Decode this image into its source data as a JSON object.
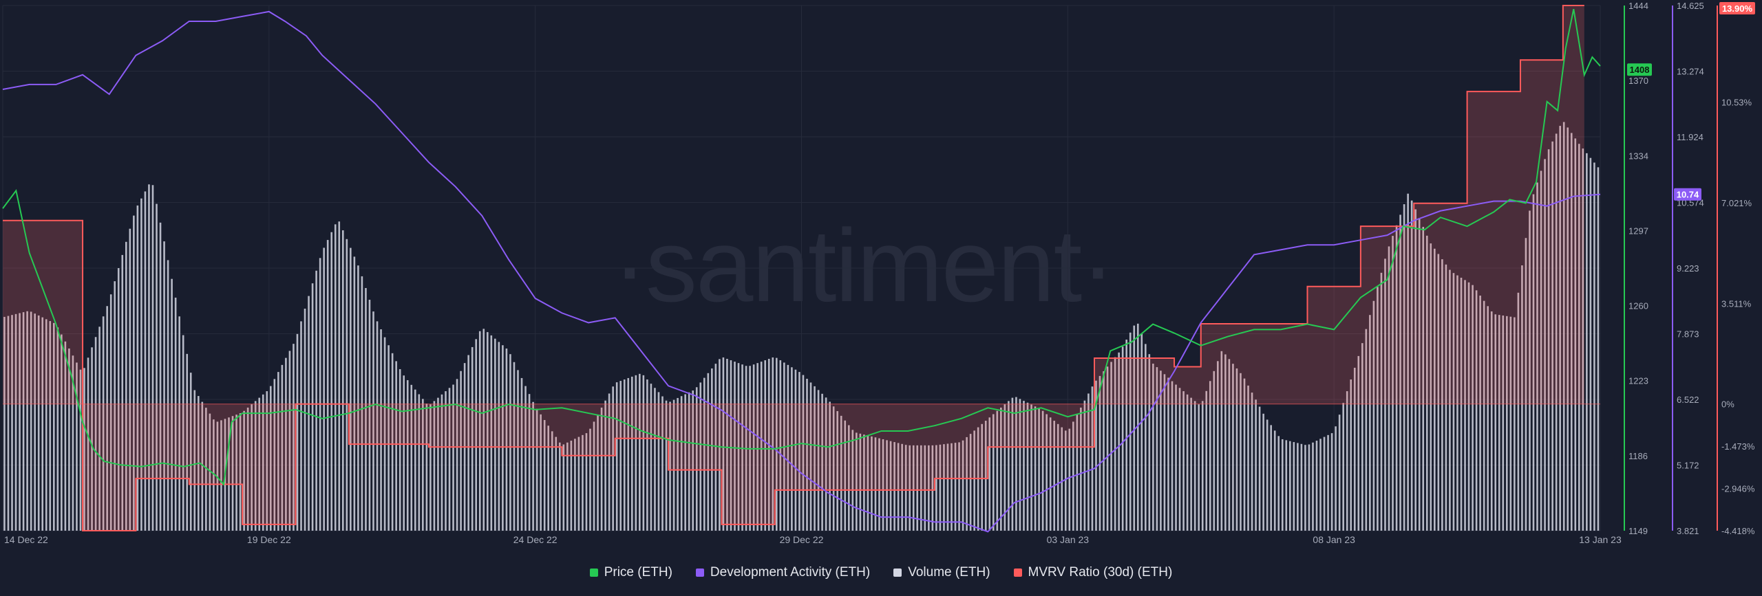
{
  "watermark": "·santiment·",
  "colors": {
    "background": "#181d2d",
    "price": "#26c953",
    "dev_activity": "#8c5cf6",
    "volume": "#d3d6e3",
    "mvrv": "#ff5b5b",
    "grid": "#262b3b",
    "axis_text": "#a8adbb"
  },
  "chart_data": {
    "type": "line",
    "title": "",
    "x_range": [
      "2022-12-14",
      "2023-01-13"
    ],
    "x_ticks": [
      {
        "date": "2022-12-14",
        "label": "14 Dec 22"
      },
      {
        "date": "2022-12-19",
        "label": "19 Dec 22"
      },
      {
        "date": "2022-12-24",
        "label": "24 Dec 22"
      },
      {
        "date": "2022-12-29",
        "label": "29 Dec 22"
      },
      {
        "date": "2023-01-03",
        "label": "03 Jan 23"
      },
      {
        "date": "2023-01-08",
        "label": "08 Jan 23"
      },
      {
        "date": "2023-01-13",
        "label": "13 Jan 23"
      }
    ],
    "grid": true,
    "legend_position": "bottom-center",
    "axes": {
      "price": {
        "ylim": [
          1149,
          1444
        ],
        "ticks": [
          "1444",
          "1408",
          "1370",
          "1334",
          "1297",
          "1260",
          "1223",
          "1186",
          "1149"
        ],
        "last_value_label": "1408"
      },
      "dev_activity": {
        "ylim": [
          3.821,
          14.625
        ],
        "ticks": [
          "14.625",
          "13.274",
          "11.924",
          "10.574",
          "9.223",
          "7.873",
          "6.522",
          "5.172",
          "3.821"
        ],
        "last_value_label": "10.74"
      },
      "mvrv": {
        "ylim": [
          -4.418,
          13.9
        ],
        "ticks": [
          "13.90%",
          "10.53%",
          "7.021%",
          "3.511%",
          "0%",
          "-1.473%",
          "-2.946%",
          "-4.418%"
        ],
        "last_value_label": "13.90%"
      }
    },
    "series": [
      {
        "name": "Price (ETH)",
        "axis": "price",
        "points": [
          [
            0,
            1330
          ],
          [
            0.25,
            1340
          ],
          [
            0.5,
            1305
          ],
          [
            0.75,
            1285
          ],
          [
            1,
            1265
          ],
          [
            1.15,
            1250
          ],
          [
            1.3,
            1235
          ],
          [
            1.5,
            1210
          ],
          [
            1.7,
            1195
          ],
          [
            1.9,
            1188
          ],
          [
            2.2,
            1186
          ],
          [
            2.6,
            1185
          ],
          [
            3,
            1187
          ],
          [
            3.4,
            1185
          ],
          [
            3.7,
            1187
          ],
          [
            4,
            1180
          ],
          [
            4.15,
            1175
          ],
          [
            4.3,
            1210
          ],
          [
            4.5,
            1215
          ],
          [
            5,
            1215
          ],
          [
            5.5,
            1217
          ],
          [
            6,
            1212
          ],
          [
            6.5,
            1215
          ],
          [
            7,
            1220
          ],
          [
            7.5,
            1216
          ],
          [
            8,
            1218
          ],
          [
            8.5,
            1220
          ],
          [
            9,
            1215
          ],
          [
            9.5,
            1220
          ],
          [
            10,
            1217
          ],
          [
            10.5,
            1218
          ],
          [
            11,
            1215
          ],
          [
            11.5,
            1212
          ],
          [
            12,
            1205
          ],
          [
            12.5,
            1200
          ],
          [
            13,
            1198
          ],
          [
            13.5,
            1196
          ],
          [
            14,
            1195
          ],
          [
            14.5,
            1195
          ],
          [
            15,
            1198
          ],
          [
            15.5,
            1196
          ],
          [
            16,
            1200
          ],
          [
            16.5,
            1205
          ],
          [
            17,
            1205
          ],
          [
            17.5,
            1208
          ],
          [
            18,
            1212
          ],
          [
            18.5,
            1218
          ],
          [
            19,
            1215
          ],
          [
            19.5,
            1218
          ],
          [
            20,
            1213
          ],
          [
            20.5,
            1217
          ],
          [
            20.8,
            1250
          ],
          [
            21.2,
            1255
          ],
          [
            21.6,
            1265
          ],
          [
            22,
            1260
          ],
          [
            22.5,
            1253
          ],
          [
            23,
            1258
          ],
          [
            23.5,
            1262
          ],
          [
            24,
            1262
          ],
          [
            24.5,
            1265
          ],
          [
            25,
            1262
          ],
          [
            25.5,
            1280
          ],
          [
            26,
            1290
          ],
          [
            26.3,
            1320
          ],
          [
            26.7,
            1318
          ],
          [
            27,
            1325
          ],
          [
            27.5,
            1320
          ],
          [
            28,
            1328
          ],
          [
            28.3,
            1335
          ],
          [
            28.6,
            1333
          ],
          [
            28.8,
            1345
          ],
          [
            29,
            1390
          ],
          [
            29.2,
            1385
          ],
          [
            29.35,
            1420
          ],
          [
            29.5,
            1442
          ],
          [
            29.7,
            1405
          ],
          [
            29.85,
            1415
          ],
          [
            30,
            1410
          ]
        ]
      },
      {
        "name": "Development Activity (ETH)",
        "axis": "dev_activity",
        "points": [
          [
            0,
            12.9
          ],
          [
            0.5,
            13.0
          ],
          [
            1,
            13.0
          ],
          [
            1.5,
            13.2
          ],
          [
            2,
            12.8
          ],
          [
            2.5,
            13.6
          ],
          [
            3,
            13.9
          ],
          [
            3.5,
            14.3
          ],
          [
            4,
            14.3
          ],
          [
            4.5,
            14.4
          ],
          [
            5,
            14.5
          ],
          [
            5.3,
            14.3
          ],
          [
            5.7,
            14.0
          ],
          [
            6,
            13.6
          ],
          [
            6.5,
            13.1
          ],
          [
            7,
            12.6
          ],
          [
            7.5,
            12.0
          ],
          [
            8,
            11.4
          ],
          [
            8.5,
            10.9
          ],
          [
            9,
            10.3
          ],
          [
            9.5,
            9.4
          ],
          [
            10,
            8.6
          ],
          [
            10.5,
            8.3
          ],
          [
            11,
            8.1
          ],
          [
            11.5,
            8.2
          ],
          [
            12,
            7.5
          ],
          [
            12.5,
            6.8
          ],
          [
            13,
            6.6
          ],
          [
            13.5,
            6.3
          ],
          [
            14,
            5.9
          ],
          [
            14.5,
            5.5
          ],
          [
            15,
            5.0
          ],
          [
            15.5,
            4.6
          ],
          [
            16,
            4.3
          ],
          [
            16.5,
            4.1
          ],
          [
            17,
            4.1
          ],
          [
            17.5,
            4.0
          ],
          [
            18,
            4.0
          ],
          [
            18.5,
            3.8
          ],
          [
            19,
            4.4
          ],
          [
            19.5,
            4.6
          ],
          [
            20,
            4.9
          ],
          [
            20.5,
            5.1
          ],
          [
            21,
            5.6
          ],
          [
            21.5,
            6.2
          ],
          [
            22,
            7.1
          ],
          [
            22.5,
            8.1
          ],
          [
            23,
            8.8
          ],
          [
            23.5,
            9.5
          ],
          [
            24,
            9.6
          ],
          [
            24.5,
            9.7
          ],
          [
            25,
            9.7
          ],
          [
            25.5,
            9.8
          ],
          [
            26,
            9.9
          ],
          [
            26.5,
            10.2
          ],
          [
            27,
            10.4
          ],
          [
            27.5,
            10.5
          ],
          [
            28,
            10.6
          ],
          [
            28.5,
            10.6
          ],
          [
            29,
            10.5
          ],
          [
            29.5,
            10.7
          ],
          [
            30,
            10.74
          ]
        ]
      },
      {
        "name": "Volume (ETH)",
        "axis": "volume",
        "ylim": [
          0,
          16
        ],
        "points": [
          [
            0,
            6.5
          ],
          [
            0.5,
            6.7
          ],
          [
            1,
            6.3
          ],
          [
            1.5,
            4.8
          ],
          [
            2,
            7.0
          ],
          [
            2.5,
            9.8
          ],
          [
            2.8,
            10.7
          ],
          [
            3.2,
            7.5
          ],
          [
            3.6,
            4.3
          ],
          [
            4,
            3.3
          ],
          [
            4.5,
            3.6
          ],
          [
            5,
            4.3
          ],
          [
            5.5,
            5.8
          ],
          [
            6,
            8.5
          ],
          [
            6.3,
            9.5
          ],
          [
            6.7,
            8.0
          ],
          [
            7,
            6.5
          ],
          [
            7.5,
            4.8
          ],
          [
            8,
            3.8
          ],
          [
            8.5,
            4.5
          ],
          [
            9,
            6.2
          ],
          [
            9.5,
            5.5
          ],
          [
            10,
            3.8
          ],
          [
            10.5,
            2.6
          ],
          [
            11,
            3.0
          ],
          [
            11.5,
            4.5
          ],
          [
            12,
            4.8
          ],
          [
            12.5,
            3.9
          ],
          [
            13,
            4.3
          ],
          [
            13.5,
            5.3
          ],
          [
            14,
            5.0
          ],
          [
            14.5,
            5.3
          ],
          [
            15,
            4.8
          ],
          [
            15.5,
            4.0
          ],
          [
            16,
            3.0
          ],
          [
            16.5,
            2.8
          ],
          [
            17,
            2.6
          ],
          [
            17.5,
            2.6
          ],
          [
            18,
            2.7
          ],
          [
            18.5,
            3.4
          ],
          [
            19,
            4.1
          ],
          [
            19.5,
            3.7
          ],
          [
            20,
            3.0
          ],
          [
            20.5,
            4.5
          ],
          [
            21,
            5.5
          ],
          [
            21.3,
            6.4
          ],
          [
            21.6,
            5.1
          ],
          [
            22,
            4.5
          ],
          [
            22.5,
            3.8
          ],
          [
            22.9,
            5.5
          ],
          [
            23.3,
            4.7
          ],
          [
            23.7,
            3.5
          ],
          [
            24,
            2.8
          ],
          [
            24.5,
            2.6
          ],
          [
            25,
            3.0
          ],
          [
            25.5,
            5.5
          ],
          [
            26,
            8.5
          ],
          [
            26.4,
            10.3
          ],
          [
            26.8,
            8.8
          ],
          [
            27.2,
            7.9
          ],
          [
            27.6,
            7.5
          ],
          [
            28,
            6.6
          ],
          [
            28.4,
            6.5
          ],
          [
            28.7,
            10.0
          ],
          [
            29,
            11.5
          ],
          [
            29.3,
            12.5
          ],
          [
            29.6,
            11.8
          ],
          [
            30,
            11.0
          ]
        ]
      },
      {
        "name": "MVRV Ratio (30d) (ETH)",
        "axis": "mvrv",
        "step": true,
        "points": [
          [
            0,
            6.4
          ],
          [
            1.5,
            6.4
          ],
          [
            1.5,
            -4.418
          ],
          [
            2.5,
            -4.418
          ],
          [
            2.5,
            -2.6
          ],
          [
            3.5,
            -2.6
          ],
          [
            3.5,
            -2.8
          ],
          [
            4.5,
            -2.8
          ],
          [
            4.5,
            -4.2
          ],
          [
            5.5,
            -4.2
          ],
          [
            5.5,
            0
          ],
          [
            6.5,
            0
          ],
          [
            6.5,
            -1.4
          ],
          [
            8,
            -1.4
          ],
          [
            8,
            -1.5
          ],
          [
            10.5,
            -1.5
          ],
          [
            10.5,
            -1.8
          ],
          [
            11.5,
            -1.8
          ],
          [
            11.5,
            -1.2
          ],
          [
            12.5,
            -1.2
          ],
          [
            12.5,
            -2.3
          ],
          [
            13.5,
            -2.3
          ],
          [
            13.5,
            -4.2
          ],
          [
            14.5,
            -4.2
          ],
          [
            14.5,
            -3.0
          ],
          [
            17.5,
            -3.0
          ],
          [
            17.5,
            -2.6
          ],
          [
            18.5,
            -2.6
          ],
          [
            18.5,
            -1.5
          ],
          [
            20.5,
            -1.5
          ],
          [
            20.5,
            1.6
          ],
          [
            22,
            1.6
          ],
          [
            22,
            1.3
          ],
          [
            22.5,
            1.3
          ],
          [
            22.5,
            2.8
          ],
          [
            24.5,
            2.8
          ],
          [
            24.5,
            4.1
          ],
          [
            25.5,
            4.1
          ],
          [
            25.5,
            6.2
          ],
          [
            26.5,
            6.2
          ],
          [
            26.5,
            7.0
          ],
          [
            27.5,
            7.0
          ],
          [
            27.5,
            10.9
          ],
          [
            28.5,
            10.9
          ],
          [
            28.5,
            12.0
          ],
          [
            29.3,
            12.0
          ],
          [
            29.3,
            13.9
          ],
          [
            29.7,
            13.9
          ],
          [
            29.7,
            13.9
          ]
        ]
      }
    ]
  }
}
